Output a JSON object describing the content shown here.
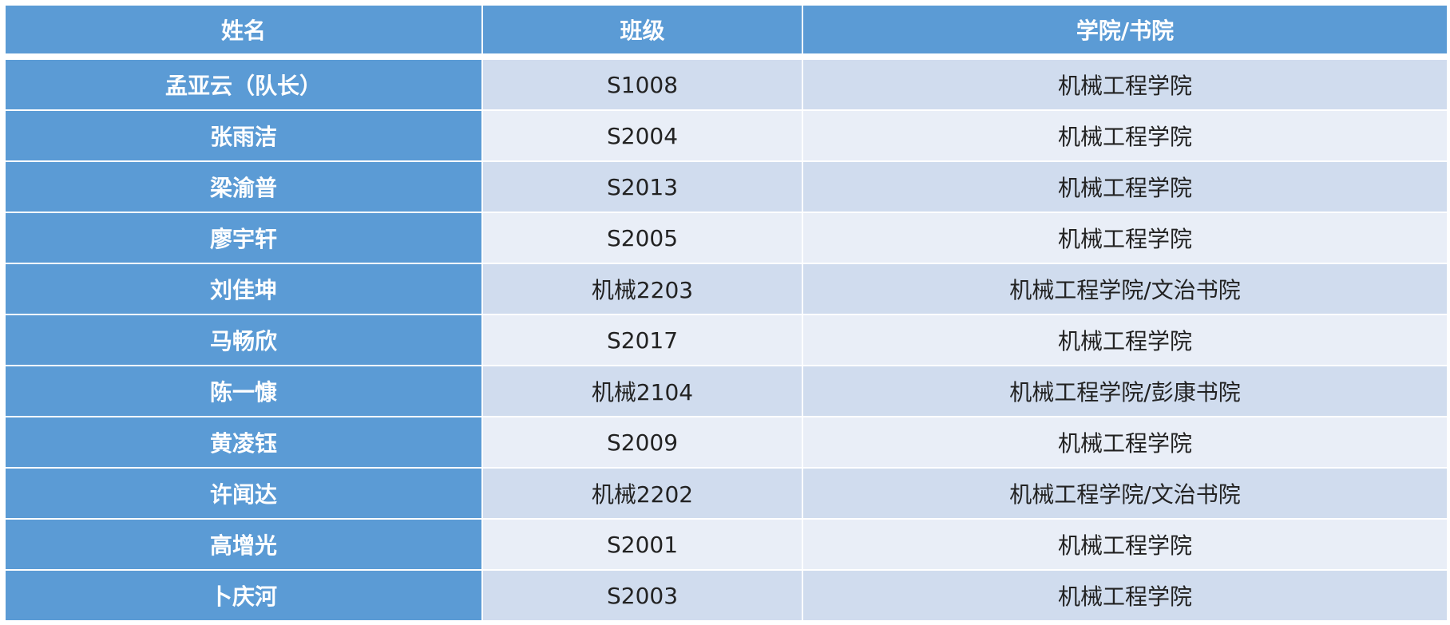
{
  "table": {
    "headers": [
      "姓名",
      "班级",
      "学院/书院"
    ],
    "rows": [
      {
        "name": "孟亚云（队长）",
        "class": "S1008",
        "college": "机械工程学院"
      },
      {
        "name": "张雨洁",
        "class": "S2004",
        "college": "机械工程学院"
      },
      {
        "name": "梁渝普",
        "class": "S2013",
        "college": "机械工程学院"
      },
      {
        "name": "廖宇轩",
        "class": "S2005",
        "college": "机械工程学院"
      },
      {
        "name": "刘佳坤",
        "class": "机械2203",
        "college": "机械工程学院/文治书院"
      },
      {
        "name": "马畅欣",
        "class": "S2017",
        "college": "机械工程学院"
      },
      {
        "name": "陈一慷",
        "class": "机械2104",
        "college": "机械工程学院/彭康书院"
      },
      {
        "name": "黄凌钰",
        "class": "S2009",
        "college": "机械工程学院"
      },
      {
        "name": "许闻达",
        "class": "机械2202",
        "college": "机械工程学院/文治书院"
      },
      {
        "name": "高增光",
        "class": "S2001",
        "college": "机械工程学院"
      },
      {
        "name": "卜庆河",
        "class": "S2003",
        "college": "机械工程学院"
      }
    ]
  },
  "colors": {
    "header": "#5B9BD5",
    "row_dark": "#D0DCEE",
    "row_light": "#E9EEF7"
  }
}
